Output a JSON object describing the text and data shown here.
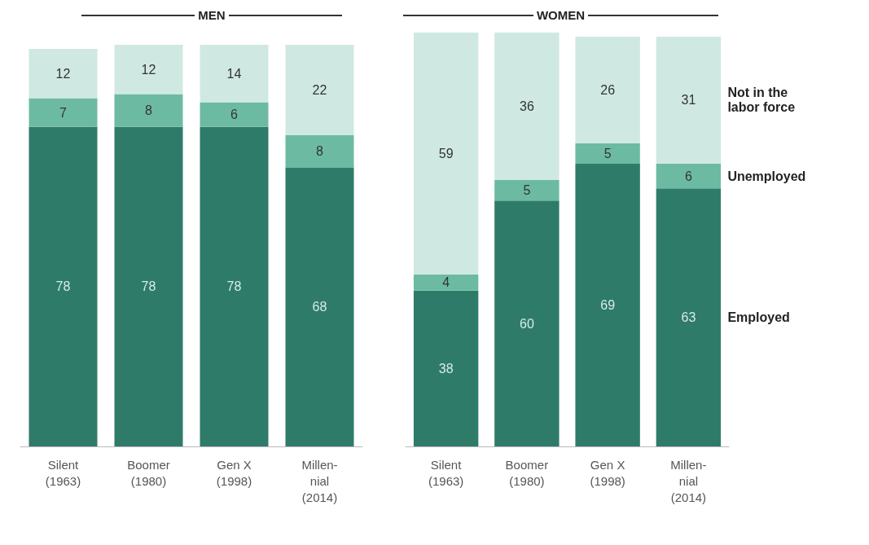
{
  "chart_data": [
    {
      "type": "bar",
      "title": "MEN",
      "categories": [
        "Silent\n(1963)",
        "Boomer\n(1980)",
        "Gen X\n(1998)",
        "Millen-\nnial\n(2014)"
      ],
      "stacked": true,
      "data_labels": true,
      "series": [
        {
          "color": "#2f7b69",
          "values": [
            78,
            78,
            78,
            68
          ]
        },
        {
          "color": "#6dbaa3",
          "values": [
            7,
            8,
            6,
            8
          ]
        },
        {
          "color": "#cfe9e2",
          "values": [
            12,
            12,
            14,
            22
          ]
        }
      ]
    },
    {
      "type": "bar",
      "title": "WOMEN",
      "categories": [
        "Silent\n(1963)",
        "Boomer\n(1980)",
        "Gen X\n(1998)",
        "Millen-\nnial\n(2014)"
      ],
      "stacked": true,
      "data_labels": true,
      "series": [
        {
          "name": "Employed",
          "color": "#2f7b69",
          "values": [
            38,
            60,
            69,
            63
          ]
        },
        {
          "name": "Unemployed",
          "color": "#6dbaa3",
          "values": [
            4,
            5,
            5,
            6
          ]
        },
        {
          "name": "Not in the\nlabor force",
          "color": "#cfe9e2",
          "values": [
            59,
            36,
            26,
            31
          ]
        }
      ]
    }
  ]
}
